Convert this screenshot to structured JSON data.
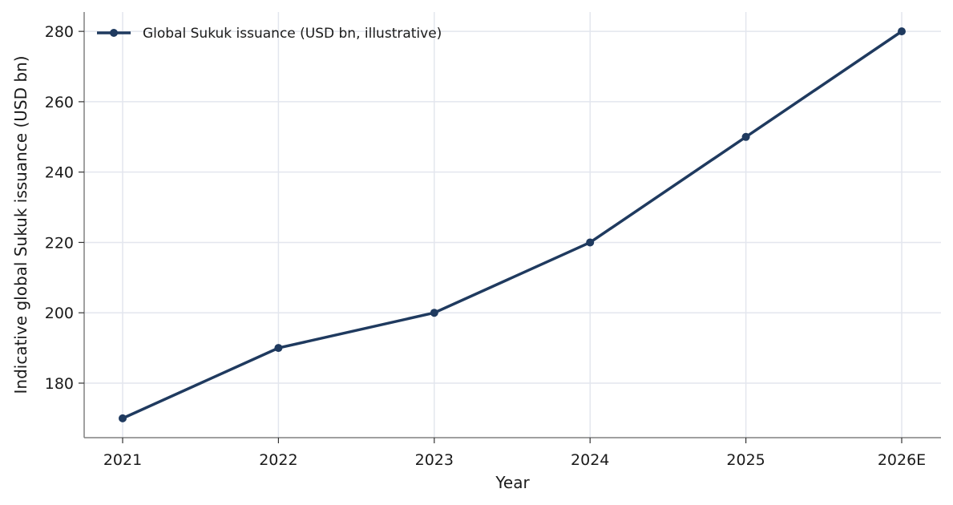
{
  "chart_data": {
    "type": "line",
    "categories": [
      "2021",
      "2022",
      "2023",
      "2024",
      "2025",
      "2026E"
    ],
    "series": [
      {
        "name": "Global Sukuk issuance (USD bn, illustrative)",
        "values": [
          170,
          190,
          200,
          220,
          250,
          280
        ],
        "color": "#1f3a5f"
      }
    ],
    "xlabel": "Year",
    "ylabel": "Indicative global Sukuk issuance (USD bn)",
    "yticks": [
      180,
      200,
      220,
      240,
      260,
      280
    ],
    "ylim": [
      164.5,
      285.5
    ],
    "grid": true,
    "grid_color": "#e3e6ee",
    "axis_color": "#808080",
    "legend_position": "top-left"
  }
}
